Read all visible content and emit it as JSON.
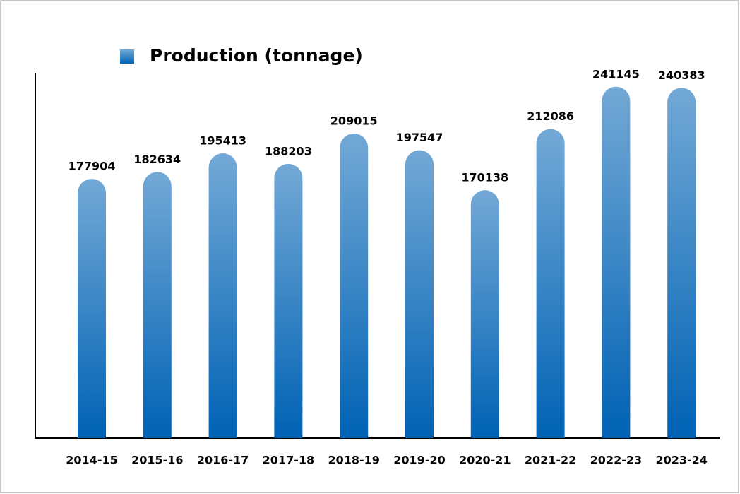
{
  "chart_data": {
    "type": "bar",
    "categories": [
      "2014-15",
      "2015-16",
      "2016-17",
      "2017-18",
      "2018-19",
      "2019-20",
      "2020-21",
      "2021-22",
      "2022-23",
      "2023-24"
    ],
    "series": [
      {
        "name": "Production (tonnage)",
        "color": "#0062b4",
        "values": [
          177904,
          182634,
          195413,
          188203,
          209015,
          197547,
          170138,
          212086,
          241145,
          240383
        ]
      }
    ],
    "ylim": [
      0,
      250000
    ]
  }
}
